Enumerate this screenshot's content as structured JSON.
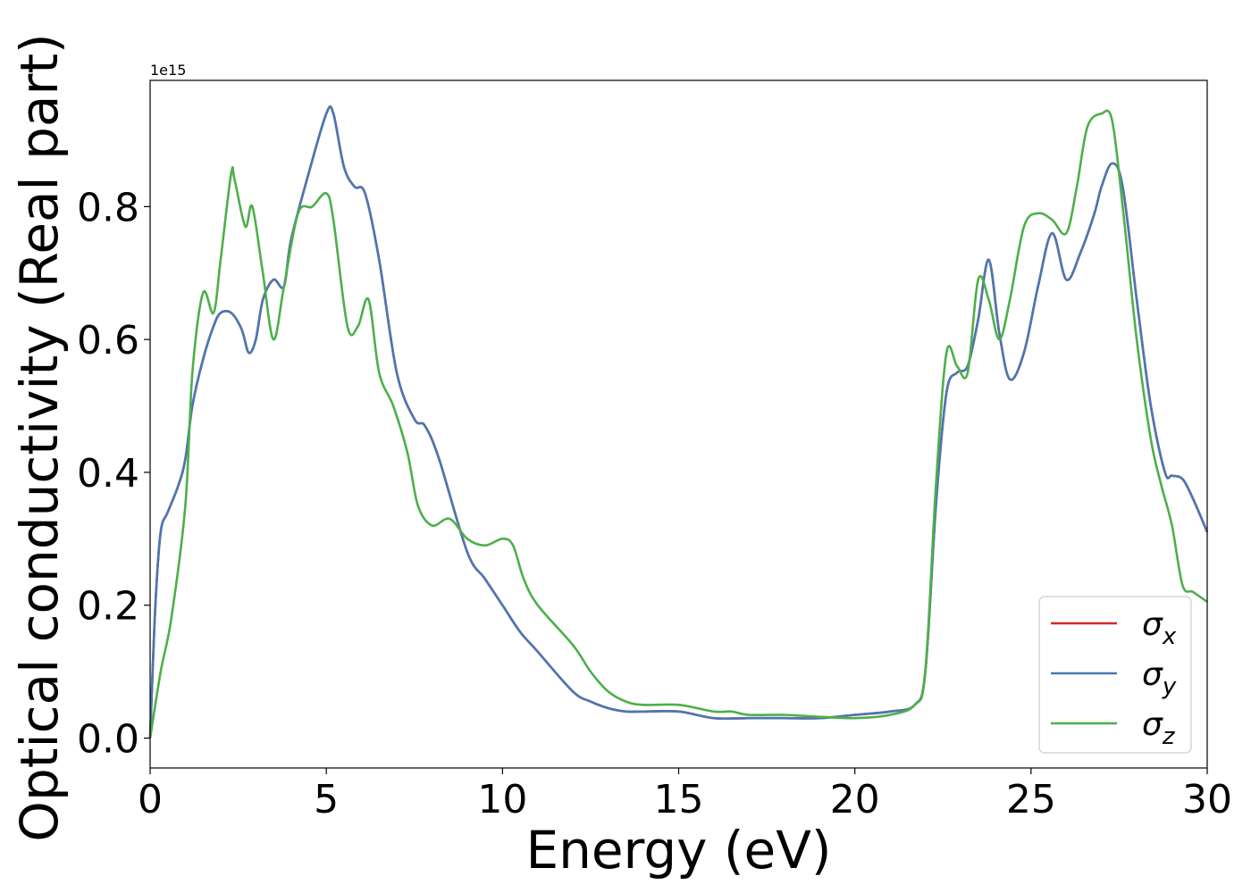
{
  "chart_data": {
    "type": "line",
    "xlabel": "Energy (eV)",
    "ylabel": "Optical conductivity (Real part)",
    "offset_text": "1e15",
    "xlim": [
      0,
      30
    ],
    "ylim": [
      -0.045,
      0.99
    ],
    "x_ticks": [
      "0",
      "5",
      "10",
      "15",
      "20",
      "25",
      "30"
    ],
    "y_ticks": [
      "0.0",
      "0.2",
      "0.4",
      "0.6",
      "0.8"
    ],
    "grid": false,
    "legend_position": "lower-right",
    "series": [
      {
        "name": "σ",
        "subscript": "x",
        "color": "#d62728",
        "x": [
          0,
          0.15,
          0.3,
          0.5,
          0.8,
          1.0,
          1.2,
          1.5,
          1.8,
          2.0,
          2.3,
          2.6,
          2.8,
          3.0,
          3.2,
          3.5,
          3.8,
          4.0,
          4.5,
          5.0,
          5.2,
          5.5,
          5.8,
          6.1,
          6.5,
          7.0,
          7.5,
          7.8,
          8.2,
          9.0,
          9.5,
          10.0,
          10.5,
          11.0,
          12.0,
          12.5,
          13.0,
          13.5,
          14.0,
          15.0,
          16.0,
          17.0,
          18.0,
          19.0,
          20.0,
          21.0,
          21.7,
          22.0,
          22.3,
          22.6,
          22.9,
          23.2,
          23.5,
          23.8,
          24.1,
          24.4,
          24.8,
          25.2,
          25.6,
          26.0,
          26.4,
          26.8,
          27.0,
          27.3,
          27.6,
          28.0,
          28.4,
          28.8,
          29.0,
          29.3,
          29.6,
          30.0
        ],
        "y": [
          0.0,
          0.2,
          0.31,
          0.34,
          0.38,
          0.42,
          0.5,
          0.57,
          0.62,
          0.64,
          0.64,
          0.615,
          0.58,
          0.6,
          0.66,
          0.69,
          0.68,
          0.75,
          0.85,
          0.94,
          0.94,
          0.86,
          0.83,
          0.82,
          0.72,
          0.55,
          0.48,
          0.47,
          0.42,
          0.28,
          0.24,
          0.2,
          0.16,
          0.13,
          0.07,
          0.055,
          0.045,
          0.04,
          0.04,
          0.04,
          0.03,
          0.03,
          0.03,
          0.03,
          0.035,
          0.04,
          0.05,
          0.1,
          0.35,
          0.52,
          0.55,
          0.56,
          0.63,
          0.72,
          0.61,
          0.54,
          0.58,
          0.68,
          0.76,
          0.69,
          0.73,
          0.79,
          0.83,
          0.865,
          0.83,
          0.66,
          0.5,
          0.4,
          0.395,
          0.39,
          0.36,
          0.31
        ]
      },
      {
        "name": "σ",
        "subscript": "y",
        "color": "#4a77b4",
        "x": [
          0,
          0.15,
          0.3,
          0.5,
          0.8,
          1.0,
          1.2,
          1.5,
          1.8,
          2.0,
          2.3,
          2.6,
          2.8,
          3.0,
          3.2,
          3.5,
          3.8,
          4.0,
          4.5,
          5.0,
          5.2,
          5.5,
          5.8,
          6.1,
          6.5,
          7.0,
          7.5,
          7.8,
          8.2,
          9.0,
          9.5,
          10.0,
          10.5,
          11.0,
          12.0,
          12.5,
          13.0,
          13.5,
          14.0,
          15.0,
          16.0,
          17.0,
          18.0,
          19.0,
          20.0,
          21.0,
          21.7,
          22.0,
          22.3,
          22.6,
          22.9,
          23.2,
          23.5,
          23.8,
          24.1,
          24.4,
          24.8,
          25.2,
          25.6,
          26.0,
          26.4,
          26.8,
          27.0,
          27.3,
          27.6,
          28.0,
          28.4,
          28.8,
          29.0,
          29.3,
          29.6,
          30.0
        ],
        "y": [
          0.0,
          0.2,
          0.31,
          0.34,
          0.38,
          0.42,
          0.5,
          0.57,
          0.62,
          0.64,
          0.64,
          0.615,
          0.58,
          0.6,
          0.66,
          0.69,
          0.68,
          0.75,
          0.85,
          0.94,
          0.94,
          0.86,
          0.83,
          0.82,
          0.72,
          0.55,
          0.48,
          0.47,
          0.42,
          0.28,
          0.24,
          0.2,
          0.16,
          0.13,
          0.07,
          0.055,
          0.045,
          0.04,
          0.04,
          0.04,
          0.03,
          0.03,
          0.03,
          0.03,
          0.035,
          0.04,
          0.05,
          0.1,
          0.35,
          0.52,
          0.55,
          0.56,
          0.63,
          0.72,
          0.61,
          0.54,
          0.58,
          0.68,
          0.76,
          0.69,
          0.73,
          0.79,
          0.83,
          0.865,
          0.83,
          0.66,
          0.5,
          0.4,
          0.395,
          0.39,
          0.36,
          0.31
        ]
      },
      {
        "name": "σ",
        "subscript": "z",
        "color": "#4daf4a",
        "x": [
          0,
          0.3,
          0.6,
          1.0,
          1.2,
          1.5,
          1.8,
          2.0,
          2.3,
          2.4,
          2.7,
          2.9,
          3.2,
          3.5,
          3.8,
          4.2,
          4.6,
          5.0,
          5.2,
          5.6,
          5.9,
          6.2,
          6.5,
          6.9,
          7.3,
          7.6,
          8.0,
          8.5,
          9.0,
          9.5,
          10.0,
          10.3,
          10.6,
          11.0,
          12.0,
          12.5,
          13.0,
          13.5,
          14.0,
          15.0,
          16.0,
          16.5,
          17.0,
          18.0,
          19.0,
          20.0,
          21.0,
          21.7,
          22.0,
          22.3,
          22.6,
          22.9,
          23.2,
          23.5,
          23.8,
          24.1,
          24.4,
          24.8,
          25.2,
          25.6,
          26.0,
          26.3,
          26.6,
          27.0,
          27.3,
          27.6,
          28.0,
          28.4,
          28.7,
          29.0,
          29.3,
          29.6,
          30.0
        ],
        "y": [
          0.0,
          0.1,
          0.18,
          0.35,
          0.55,
          0.67,
          0.64,
          0.72,
          0.85,
          0.84,
          0.77,
          0.8,
          0.7,
          0.6,
          0.68,
          0.79,
          0.8,
          0.82,
          0.78,
          0.62,
          0.62,
          0.66,
          0.55,
          0.5,
          0.43,
          0.35,
          0.32,
          0.33,
          0.3,
          0.29,
          0.3,
          0.29,
          0.24,
          0.2,
          0.14,
          0.1,
          0.07,
          0.055,
          0.05,
          0.05,
          0.04,
          0.04,
          0.035,
          0.035,
          0.032,
          0.03,
          0.035,
          0.05,
          0.1,
          0.38,
          0.58,
          0.56,
          0.55,
          0.69,
          0.66,
          0.6,
          0.66,
          0.77,
          0.79,
          0.78,
          0.76,
          0.83,
          0.92,
          0.94,
          0.93,
          0.8,
          0.6,
          0.45,
          0.38,
          0.32,
          0.23,
          0.22,
          0.205
        ]
      }
    ]
  }
}
